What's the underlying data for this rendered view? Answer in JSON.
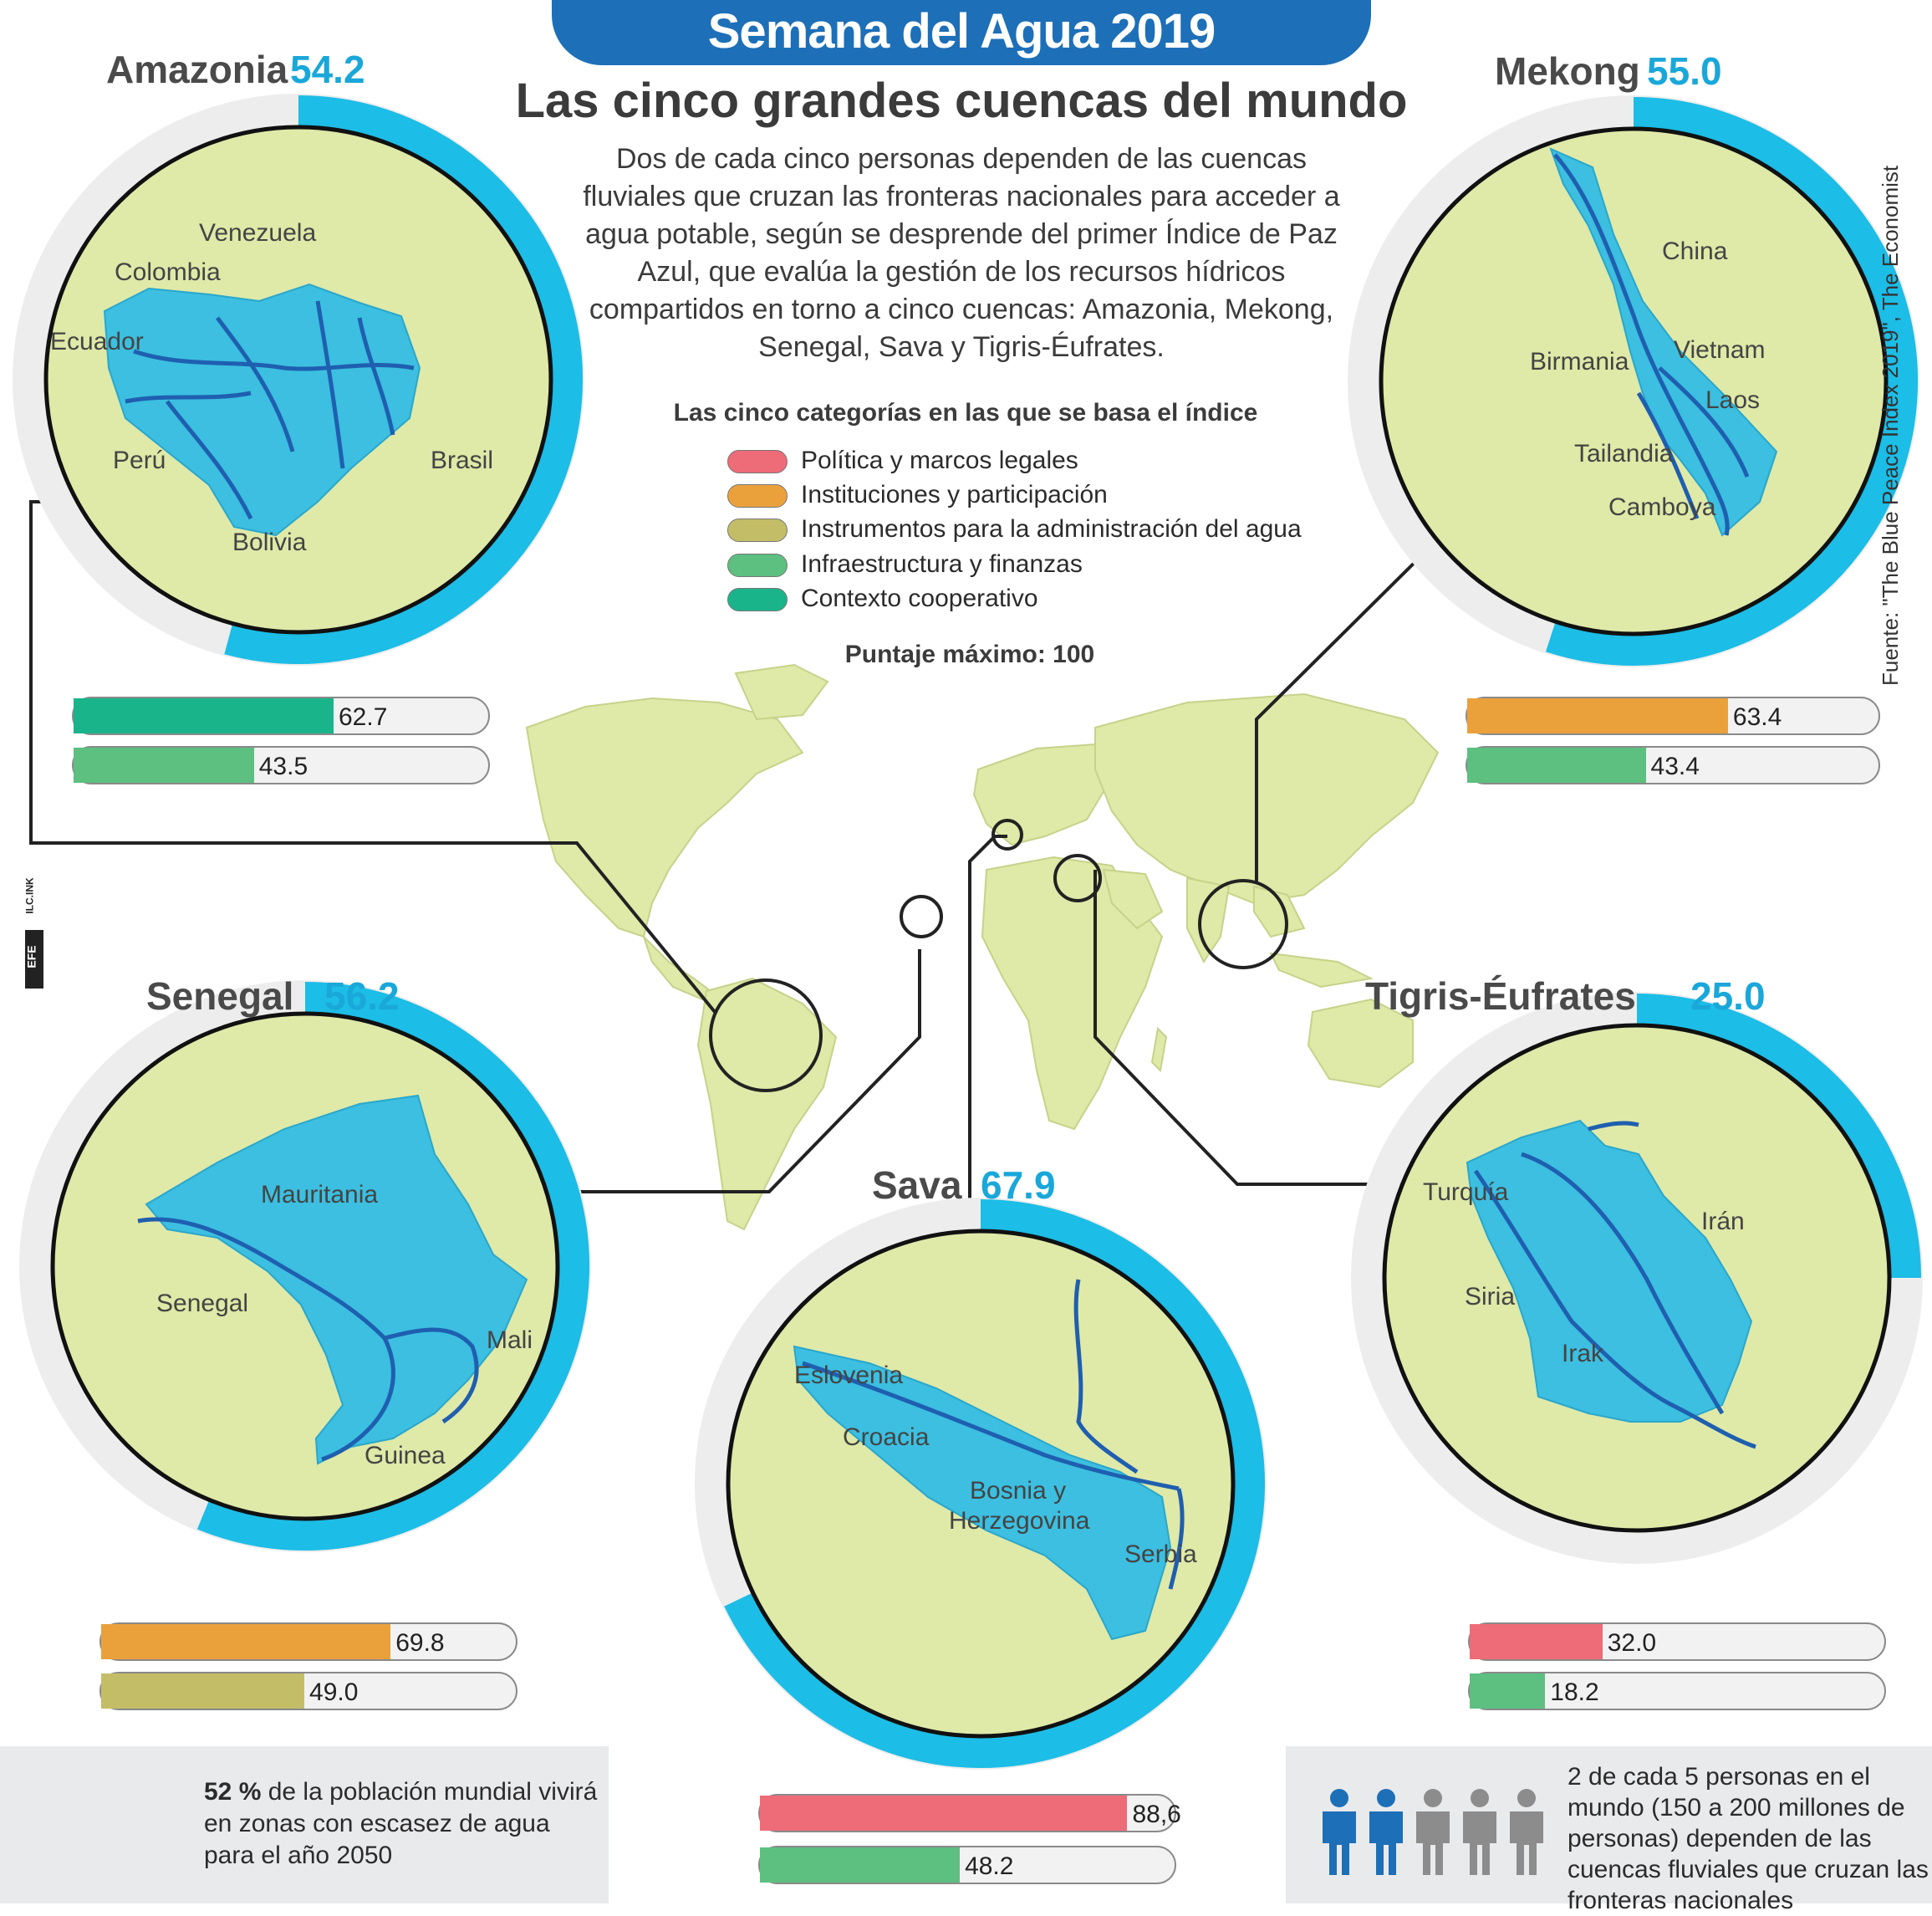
{
  "header": {
    "banner": "Semana del Agua 2019",
    "title": "Las cinco grandes cuencas del mundo",
    "intro": "Dos de cada cinco personas dependen de las cuencas fluviales que cruzan las fronteras nacionales para acceder a agua potable, según se desprende del primer Índice de Paz Azul, que evalúa la gestión de los recursos hídricos compartidos en torno a cinco cuencas: Amazonia, Mekong, Senegal, Sava y Tigris-Éufrates."
  },
  "legend": {
    "title": "Las cinco categorías en las que se basa el índice",
    "items": [
      {
        "label": "Política y marcos legales",
        "color": "#ee6b78"
      },
      {
        "label": "Instituciones y participación",
        "color": "#eba13b"
      },
      {
        "label": "Instrumentos para la administración del agua",
        "color": "#c4bd68"
      },
      {
        "label": "Infraestructura y finanzas",
        "color": "#5dbf80"
      },
      {
        "label": "Contexto cooperativo",
        "color": "#1ab48a"
      }
    ],
    "max_score": "Puntaje máximo: 100"
  },
  "chart_data": {
    "type": "bar",
    "max": 100,
    "basins": [
      {
        "name": "Amazonia",
        "score": "54.2",
        "score_value": 54.2,
        "countries": [
          "Venezuela",
          "Colombia",
          "Ecuador",
          "Perú",
          "Brasil",
          "Bolivia"
        ],
        "bars": [
          {
            "category": "Contexto cooperativo",
            "value": 62.7,
            "label": "62.7",
            "color": "#1ab48a"
          },
          {
            "category": "Infraestructura y finanzas",
            "value": 43.5,
            "label": "43.5",
            "color": "#5dbf80"
          }
        ]
      },
      {
        "name": "Mekong",
        "score": "55.0",
        "score_value": 55.0,
        "countries": [
          "China",
          "Birmania",
          "Vietnam",
          "Laos",
          "Tailandia",
          "Camboya"
        ],
        "bars": [
          {
            "category": "Instituciones y participación",
            "value": 63.4,
            "label": "63.4",
            "color": "#eba13b"
          },
          {
            "category": "Infraestructura y finanzas",
            "value": 43.4,
            "label": "43.4",
            "color": "#5dbf80"
          }
        ]
      },
      {
        "name": "Senegal",
        "score": "56.2",
        "score_value": 56.2,
        "countries": [
          "Mauritania",
          "Senegal",
          "Mali",
          "Guinea"
        ],
        "bars": [
          {
            "category": "Instituciones y participación",
            "value": 69.8,
            "label": "69.8",
            "color": "#eba13b"
          },
          {
            "category": "Instrumentos para la administración del agua",
            "value": 49.0,
            "label": "49.0",
            "color": "#c4bd68"
          }
        ]
      },
      {
        "name": "Sava",
        "score": "67.9",
        "score_value": 67.9,
        "countries": [
          "Eslovenia",
          "Croacia",
          "Bosnia y",
          "Herzegovina",
          "Serbia"
        ],
        "bars": [
          {
            "category": "Política y marcos legales",
            "value": 88.6,
            "label": "88,6",
            "color": "#ee6b78"
          },
          {
            "category": "Infraestructura y finanzas",
            "value": 48.2,
            "label": "48.2",
            "color": "#5dbf80"
          }
        ]
      },
      {
        "name": "Tigris-Éufrates",
        "score": "25.0",
        "score_value": 25.0,
        "countries": [
          "Turquía",
          "Irán",
          "Siria",
          "Irak"
        ],
        "bars": [
          {
            "category": "Política y marcos legales",
            "value": 32.0,
            "label": "32.0",
            "color": "#ee6b78"
          },
          {
            "category": "Infraestructura y finanzas",
            "value": 18.2,
            "label": "18.2",
            "color": "#5dbf80"
          }
        ]
      }
    ]
  },
  "footer": {
    "left": {
      "percent_bold": "52 %",
      "text": " de la población mundial vivirá en zonas con escasez de agua  para el año 2050",
      "value": 52
    },
    "right": {
      "text": "2 de cada 5 personas en el mundo (150 a 200 millones de personas) dependen de las cuencas fluviales que cruzan las fronteras nacionales",
      "highlighted": 2,
      "total": 5
    }
  },
  "source": "Fuente: \"The Blue Peace Index 2019\", The Economist",
  "logo": {
    "text": "EFE",
    "sub": "ILC.INK"
  },
  "colors": {
    "accent": "#1aa7d9",
    "land": "#dfe9a8",
    "basin": "#3cbfe0",
    "river": "#1f5fb0",
    "banner": "#1d6fb8"
  }
}
